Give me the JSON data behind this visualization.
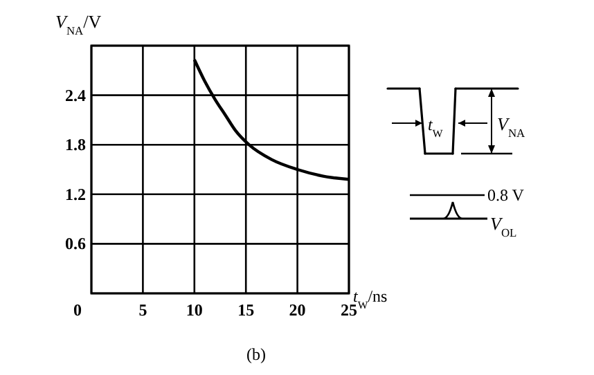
{
  "chart_data": {
    "type": "line",
    "xlabel": "t$_{W}$/ns",
    "ylabel": "V$_{NA}$/V",
    "x": [
      10,
      11,
      12,
      13,
      14,
      15.3,
      17.5,
      20,
      22.5,
      25
    ],
    "series": [
      {
        "color": "#000000",
        "values": [
          2.83,
          2.57,
          2.35,
          2.16,
          1.97,
          1.8,
          1.62,
          1.5,
          1.42,
          1.38
        ]
      }
    ],
    "xlim": [
      0,
      25
    ],
    "xticks": [
      0,
      5,
      10,
      15,
      20,
      25
    ],
    "ylim": [
      0,
      3
    ],
    "yticks": [
      {
        "value": 0,
        "label": null
      },
      0.6,
      1.2,
      1.8,
      2.4,
      {
        "value": 3,
        "label": null
      }
    ],
    "grid": true,
    "marker": "none",
    "line_style": "solid",
    "annotations": [
      "t$_{W}$",
      "V$_{NA}$",
      "0.8 V",
      "V$_{OL}$",
      "(b)"
    ]
  }
}
